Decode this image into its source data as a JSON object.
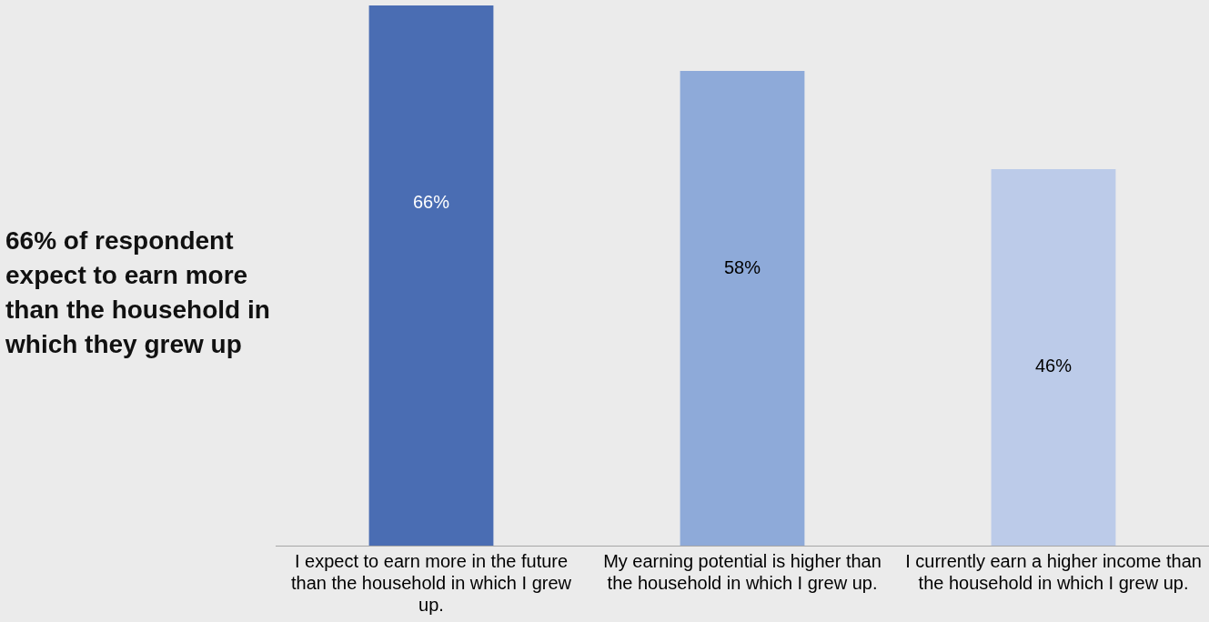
{
  "chart_data": {
    "type": "bar",
    "title": "66% of respondent expect to earn more than the household in which they grew up",
    "categories": [
      "I expect to earn more in the future than the household in which I grew up.",
      "My earning potential is higher than the household in which I grew up.",
      "I currently earn a higher income than the household in which I grew up."
    ],
    "values": [
      66,
      58,
      46
    ],
    "colors": [
      "#4a6db3",
      "#8eaad9",
      "#bccbe9"
    ],
    "value_labels": [
      "66%",
      "58%",
      "46%"
    ],
    "grid": false,
    "legend": false
  }
}
